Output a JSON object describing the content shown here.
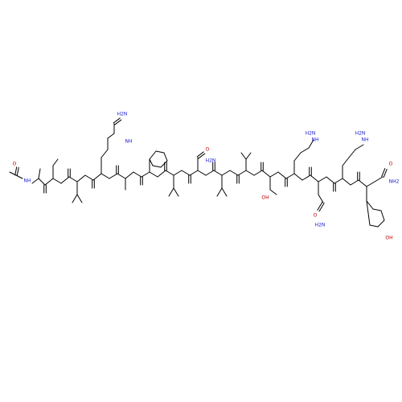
{
  "structure": {
    "kind": "skeletal-formula",
    "residues": [
      "Ala",
      "Ser",
      "Leu",
      "Arg",
      "Ala",
      "Phe",
      "Leu",
      "Asn",
      "Leu",
      "Val",
      "Thr",
      "Arg",
      "Gln",
      "Arg",
      "Tyr"
    ],
    "n_terminus": "acetyl",
    "c_terminus": "amide"
  },
  "labels": {
    "acetyl_o": "O",
    "acetyl_nh": "NH",
    "amide_o": "O",
    "amide_nh": "NH",
    "oh": "OH",
    "nh2": "NH2",
    "h2n": "H2N",
    "guanidine_nh": "NH",
    "guanidine_imine_nh2": "H2N",
    "asn_o": "O",
    "asn_nh2": "H2N",
    "thr_oh": "OH",
    "gln_o": "O",
    "gln_nh2": "H2N",
    "tyr_oh": "OH",
    "cterm_o": "O",
    "cterm_nh2": "NH2"
  },
  "colors": {
    "oxygen": "#c00000",
    "nitrogen": "#1a1ad0",
    "bond": "#000000"
  }
}
